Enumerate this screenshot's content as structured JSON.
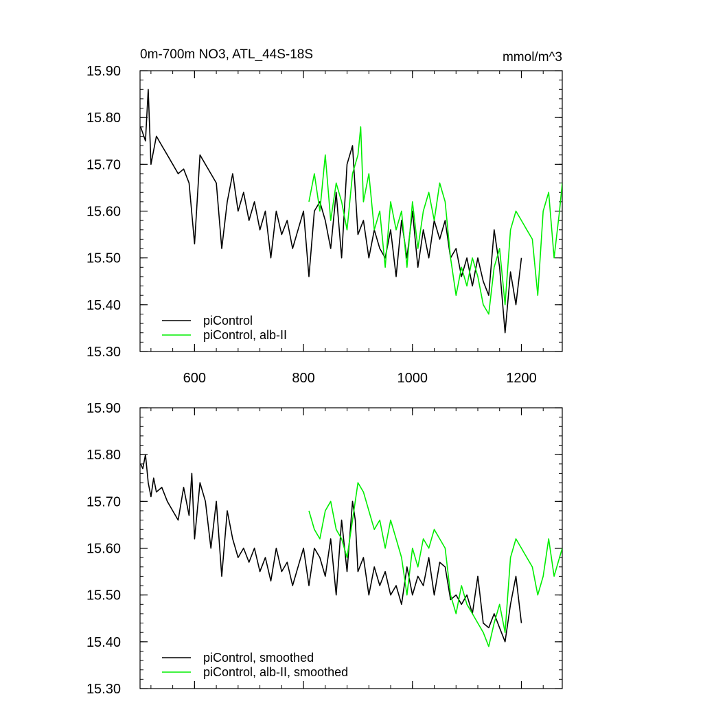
{
  "chart_data": [
    {
      "type": "line",
      "title": "0m-700m NO3, ATL_44S-18S",
      "units": "mmol/m^3",
      "xlim": [
        500,
        1275
      ],
      "ylim": [
        15.3,
        15.9
      ],
      "x_ticks": [
        600,
        800,
        1000,
        1200
      ],
      "x_tick_labels": [
        "600",
        "800",
        "1000",
        "1200"
      ],
      "y_ticks": [
        15.3,
        15.4,
        15.5,
        15.6,
        15.7,
        15.8,
        15.9
      ],
      "y_tick_labels": [
        "15.30",
        "15.40",
        "15.50",
        "15.60",
        "15.70",
        "15.80",
        "15.90"
      ],
      "legend_position": "bottom-left",
      "series": [
        {
          "name": "piControl",
          "color": "#000000",
          "x": [
            501,
            510,
            515,
            520,
            530,
            540,
            550,
            560,
            570,
            580,
            590,
            600,
            610,
            620,
            630,
            640,
            650,
            660,
            670,
            680,
            690,
            700,
            710,
            720,
            730,
            740,
            750,
            760,
            770,
            780,
            790,
            800,
            810,
            820,
            830,
            840,
            850,
            860,
            870,
            880,
            890,
            900,
            910,
            920,
            930,
            940,
            950,
            960,
            970,
            980,
            990,
            1000,
            1010,
            1020,
            1030,
            1040,
            1050,
            1060,
            1070,
            1080,
            1090,
            1100,
            1110,
            1120,
            1130,
            1140,
            1150,
            1160,
            1170,
            1180,
            1190,
            1200
          ],
          "y": [
            15.78,
            15.75,
            15.86,
            15.7,
            15.76,
            15.74,
            15.72,
            15.7,
            15.68,
            15.69,
            15.66,
            15.53,
            15.72,
            15.7,
            15.68,
            15.66,
            15.52,
            15.62,
            15.68,
            15.6,
            15.64,
            15.58,
            15.62,
            15.56,
            15.6,
            15.5,
            15.6,
            15.55,
            15.58,
            15.52,
            15.56,
            15.6,
            15.46,
            15.6,
            15.62,
            15.58,
            15.52,
            15.64,
            15.5,
            15.7,
            15.74,
            15.55,
            15.58,
            15.5,
            15.56,
            15.52,
            15.5,
            15.56,
            15.46,
            15.58,
            15.5,
            15.6,
            15.48,
            15.56,
            15.5,
            15.58,
            15.54,
            15.58,
            15.5,
            15.52,
            15.46,
            15.5,
            15.44,
            15.5,
            15.45,
            15.42,
            15.56,
            15.48,
            15.34,
            15.47,
            15.4,
            15.5
          ]
        },
        {
          "name": "piControl, alb-II",
          "color": "#00ee00",
          "x": [
            810,
            820,
            830,
            840,
            850,
            860,
            870,
            880,
            890,
            900,
            905,
            910,
            920,
            930,
            940,
            950,
            960,
            970,
            980,
            990,
            1000,
            1010,
            1020,
            1030,
            1040,
            1050,
            1060,
            1070,
            1080,
            1090,
            1100,
            1110,
            1120,
            1130,
            1140,
            1150,
            1160,
            1170,
            1180,
            1190,
            1200,
            1210,
            1220,
            1230,
            1240,
            1250,
            1260,
            1270,
            1275
          ],
          "y": [
            15.62,
            15.68,
            15.6,
            15.72,
            15.58,
            15.66,
            15.62,
            15.56,
            15.68,
            15.72,
            15.78,
            15.62,
            15.68,
            15.56,
            15.6,
            15.48,
            15.62,
            15.56,
            15.6,
            15.48,
            15.62,
            15.52,
            15.6,
            15.64,
            15.58,
            15.66,
            15.62,
            15.5,
            15.42,
            15.48,
            15.44,
            15.5,
            15.46,
            15.4,
            15.38,
            15.48,
            15.52,
            15.4,
            15.56,
            15.6,
            15.58,
            15.56,
            15.54,
            15.42,
            15.6,
            15.64,
            15.5,
            15.6,
            15.66
          ]
        }
      ]
    },
    {
      "type": "line",
      "xlim": [
        500,
        1275
      ],
      "ylim": [
        15.3,
        15.9
      ],
      "x_ticks": [
        600,
        800,
        1000,
        1200
      ],
      "y_ticks": [
        15.3,
        15.4,
        15.5,
        15.6,
        15.7,
        15.8,
        15.9
      ],
      "y_tick_labels": [
        "15.30",
        "15.40",
        "15.50",
        "15.60",
        "15.70",
        "15.80",
        "15.90"
      ],
      "legend_position": "bottom-left",
      "series": [
        {
          "name": "piControl, smoothed",
          "color": "#000000",
          "x": [
            501,
            505,
            510,
            515,
            520,
            525,
            530,
            540,
            550,
            560,
            570,
            580,
            590,
            595,
            600,
            610,
            620,
            630,
            640,
            650,
            660,
            670,
            680,
            690,
            700,
            710,
            720,
            730,
            740,
            750,
            760,
            770,
            780,
            790,
            800,
            810,
            820,
            830,
            840,
            850,
            860,
            870,
            880,
            890,
            895,
            900,
            910,
            920,
            930,
            940,
            950,
            960,
            970,
            980,
            990,
            1000,
            1010,
            1020,
            1030,
            1040,
            1050,
            1060,
            1070,
            1080,
            1090,
            1100,
            1110,
            1120,
            1130,
            1140,
            1150,
            1160,
            1170,
            1180,
            1190,
            1200
          ],
          "y": [
            15.78,
            15.77,
            15.8,
            15.74,
            15.71,
            15.75,
            15.72,
            15.73,
            15.7,
            15.68,
            15.66,
            15.73,
            15.67,
            15.76,
            15.62,
            15.74,
            15.7,
            15.6,
            15.7,
            15.54,
            15.68,
            15.62,
            15.58,
            15.6,
            15.57,
            15.6,
            15.55,
            15.58,
            15.53,
            15.6,
            15.55,
            15.57,
            15.52,
            15.56,
            15.6,
            15.52,
            15.6,
            15.58,
            15.54,
            15.62,
            15.5,
            15.66,
            15.55,
            15.7,
            15.66,
            15.55,
            15.58,
            15.5,
            15.56,
            15.52,
            15.55,
            15.5,
            15.52,
            15.48,
            15.56,
            15.5,
            15.54,
            15.52,
            15.58,
            15.5,
            15.57,
            15.56,
            15.49,
            15.5,
            15.48,
            15.5,
            15.46,
            15.54,
            15.44,
            15.43,
            15.46,
            15.43,
            15.4,
            15.48,
            15.54,
            15.44
          ]
        },
        {
          "name": "piControl, alb-II, smoothed",
          "color": "#00ee00",
          "x": [
            810,
            820,
            830,
            840,
            850,
            860,
            870,
            880,
            890,
            900,
            910,
            920,
            930,
            940,
            950,
            960,
            970,
            980,
            990,
            1000,
            1010,
            1020,
            1030,
            1040,
            1050,
            1060,
            1070,
            1080,
            1090,
            1100,
            1110,
            1120,
            1130,
            1140,
            1150,
            1160,
            1170,
            1180,
            1190,
            1200,
            1210,
            1220,
            1230,
            1240,
            1250,
            1260,
            1270,
            1275
          ],
          "y": [
            15.68,
            15.64,
            15.62,
            15.68,
            15.7,
            15.64,
            15.62,
            15.58,
            15.66,
            15.74,
            15.72,
            15.68,
            15.64,
            15.66,
            15.6,
            15.66,
            15.62,
            15.58,
            15.5,
            15.6,
            15.56,
            15.62,
            15.6,
            15.64,
            15.62,
            15.6,
            15.5,
            15.46,
            15.52,
            15.48,
            15.46,
            15.44,
            15.42,
            15.39,
            15.44,
            15.48,
            15.42,
            15.58,
            15.62,
            15.6,
            15.58,
            15.56,
            15.5,
            15.54,
            15.62,
            15.54,
            15.58,
            15.6
          ]
        }
      ]
    }
  ]
}
